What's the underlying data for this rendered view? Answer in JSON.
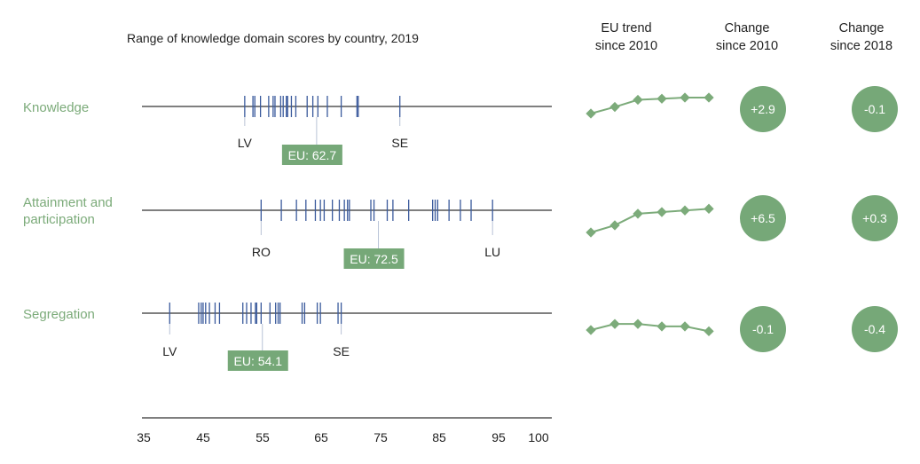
{
  "chart_data": {
    "type": "strip",
    "title": "Range of knowledge domain scores by country, 2019",
    "xlim": [
      35,
      100
    ],
    "xticks": [
      "35",
      "45",
      "55",
      "65",
      "75",
      "85",
      "95",
      "100"
    ],
    "xtick_values": [
      35,
      45,
      55,
      65,
      75,
      85,
      95,
      100
    ],
    "column_headers": {
      "trend": [
        "EU trend",
        "since 2010"
      ],
      "change2010": [
        "Change",
        "since 2010"
      ],
      "change2018": [
        "Change",
        "since 2018"
      ]
    },
    "series": [
      {
        "name": [
          "Knowledge"
        ],
        "country_scores": [
          51.3,
          52.6,
          52.9,
          53.8,
          55.1,
          55.8,
          56.1,
          57.0,
          57.4,
          57.9,
          58.1,
          58.7,
          59.4,
          61.2,
          62.1,
          62.9,
          64.4,
          66.6,
          69.1,
          69.3,
          75.9
        ],
        "low": {
          "label": "LV",
          "value": 51.3
        },
        "high": {
          "label": "SE",
          "value": 75.9
        },
        "eu_label": "EU: 62.7",
        "eu_value": 62.7,
        "eu_trend": [
          41,
          53,
          66,
          68,
          70,
          70
        ],
        "change_since_2010": "+2.9",
        "change_since_2018": "-0.1"
      },
      {
        "name": [
          "Attainment and",
          "participation"
        ],
        "country_scores": [
          53.9,
          57.1,
          59.5,
          61.0,
          62.5,
          63.3,
          63.9,
          65.2,
          66.3,
          67.1,
          67.6,
          67.9,
          71.3,
          71.8,
          73.9,
          74.8,
          77.3,
          81.1,
          81.5,
          81.9,
          83.7,
          85.5,
          87.2,
          90.6
        ],
        "low": {
          "label": "RO",
          "value": 53.9
        },
        "high": {
          "label": "LU",
          "value": 90.6
        },
        "eu_label": "EU: 72.5",
        "eu_value": 72.5,
        "eu_trend": [
          36,
          49,
          70,
          73,
          76,
          79
        ],
        "change_since_2010": "+6.5",
        "change_since_2018": "+0.3"
      },
      {
        "name": [
          "Segregation"
        ],
        "country_scores": [
          39.4,
          44.0,
          44.4,
          44.7,
          45.1,
          45.7,
          46.6,
          47.3,
          51.0,
          51.6,
          52.3,
          53.0,
          53.2,
          53.9,
          55.3,
          56.2,
          56.6,
          56.9,
          60.4,
          60.8,
          62.8,
          63.3,
          66.1,
          66.6
        ],
        "low": {
          "label": "LV",
          "value": 39.4
        },
        "high": {
          "label": "SE",
          "value": 66.6
        },
        "eu_label": "EU: 54.1",
        "eu_value": 54.1,
        "eu_trend": [
          56,
          61,
          61,
          59,
          59,
          55
        ],
        "change_since_2010": "-0.1",
        "change_since_2018": "-0.4"
      }
    ],
    "colors": {
      "tick": "#3a5a9c",
      "axis": "#333333",
      "green": "#7cab7a",
      "eu_box": "#76a878",
      "circle": "#76a878"
    }
  }
}
